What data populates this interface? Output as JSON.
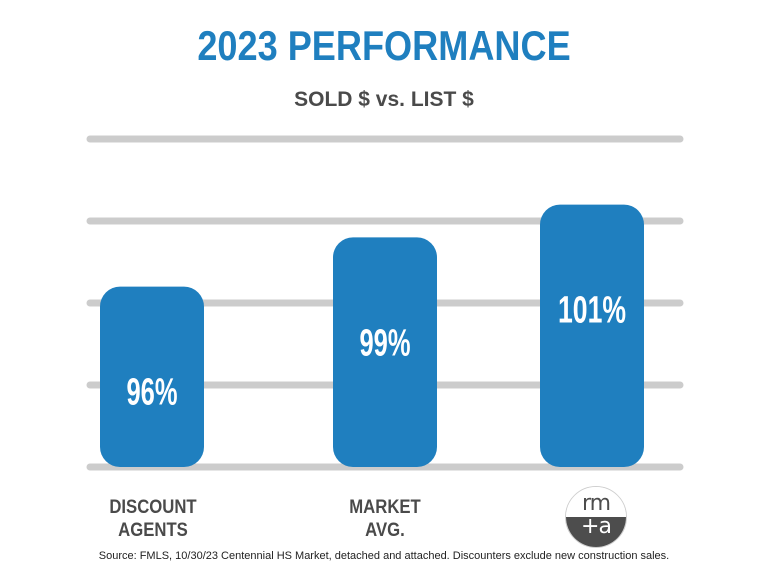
{
  "title": "2023 PERFORMANCE",
  "subtitle": "SOLD $ vs. LIST $",
  "chart_data": {
    "type": "bar",
    "categories": [
      "DISCOUNT\nAGENTS",
      "MARKET\nAVG.",
      "rm +a"
    ],
    "values": [
      96,
      99,
      101
    ],
    "data_labels": [
      "96%",
      "99%",
      "101%"
    ],
    "title": "2023 PERFORMANCE",
    "subtitle": "SOLD $ vs. LIST $",
    "ylim": [
      85,
      105
    ],
    "grid": true,
    "unit": "%"
  },
  "logo": {
    "line1": "rm",
    "line2": "+a"
  },
  "source": "Source: FMLS, 10/30/23 Centennial HS Market, detached and attached. Discounters exclude new construction sales.",
  "colors": {
    "bar": "#1f7fbf",
    "title": "#1f7fbf",
    "grid": "#cccccc",
    "text": "#4a4a4a"
  }
}
